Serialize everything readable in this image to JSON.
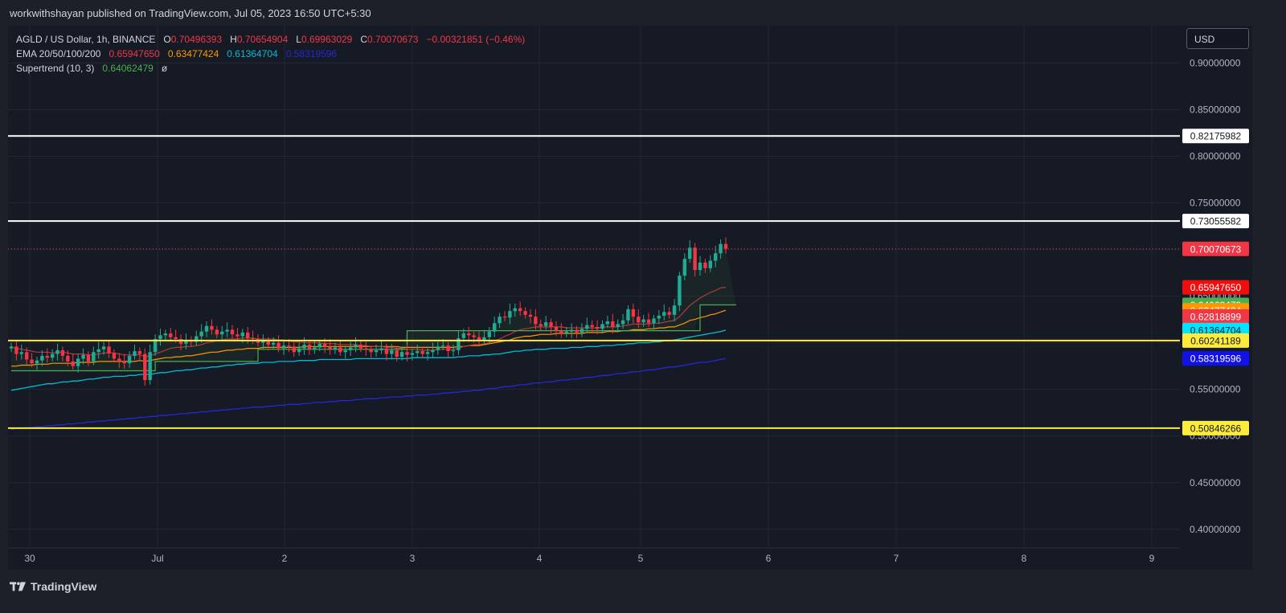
{
  "header": {
    "published": "workwithshayan published on TradingView.com, Jul 05, 2023 16:50 UTC+5:30"
  },
  "legend": {
    "symbol": "AGLD / US Dollar, 1h, BINANCE",
    "o_label": "O",
    "o_value": "0.70496393",
    "h_label": "H",
    "h_value": "0.70654904",
    "l_label": "L",
    "l_value": "0.69963029",
    "c_label": "C",
    "c_value": "0.70070673",
    "change": "−0.00321851 (−0.46%)",
    "ema_label": "EMA 20/50/100/200",
    "ema20": "0.65947650",
    "ema50": "0.63477424",
    "ema100": "0.61364704",
    "ema200": "0.58319596",
    "st_label": "Supertrend (10, 3)",
    "st_value": "0.64062479",
    "st_extra": "ø"
  },
  "currency_button": "USD",
  "footer": {
    "brand": "TradingView"
  },
  "colors": {
    "up": "#22ab94",
    "down": "#f23645",
    "ema20": "#f23645",
    "ema50": "#ff9800",
    "ema100": "#00bcd4",
    "ema200": "#2428d6",
    "supertrend_up": "#4caf50",
    "supertrend_down": "#f23645",
    "white_line": "#ffffff",
    "yellow_line": "#ffeb3b"
  },
  "chart_data": {
    "type": "candlestick",
    "symbol": "AGLD / US Dollar",
    "interval": "1h",
    "ylim": [
      0.38,
      0.94
    ],
    "y_ticks": [
      "0.40000000",
      "0.45000000",
      "0.50000000",
      "0.55000000",
      "0.60000000",
      "0.65000000",
      "0.70000000",
      "0.75000000",
      "0.80000000",
      "0.85000000",
      "0.90000000"
    ],
    "x_ticks": [
      "30",
      "Jul",
      "2",
      "3",
      "4",
      "5",
      "6",
      "7",
      "8",
      "9"
    ],
    "horizontal_lines": [
      {
        "value": 0.82175982,
        "label": "0.82175982",
        "color": "#ffffff"
      },
      {
        "value": 0.73055582,
        "label": "0.73055582",
        "color": "#ffffff"
      },
      {
        "value": 0.60241189,
        "label": "0.60241189",
        "color": "#ffeb3b"
      },
      {
        "value": 0.50846266,
        "label": "0.50846266",
        "color": "#ffeb3b"
      }
    ],
    "price_labels": [
      {
        "value": 0.70070673,
        "label": "0.70070673",
        "bg": "#f23645",
        "fg": "#ffffff"
      },
      {
        "value": 0.6594765,
        "label": "0.65947650",
        "bg": "#f20d0d",
        "fg": "#ffffff"
      },
      {
        "value": 0.64062479,
        "label": "0.64062479",
        "bg": "#4caf50",
        "fg": "#ffffff"
      },
      {
        "value": 0.63477424,
        "label": "0.63477424",
        "bg": "#ff9800",
        "fg": "#ffffff"
      },
      {
        "value": 0.62818899,
        "label": "0.62818899",
        "bg": "#f23645",
        "fg": "#ffffff"
      },
      {
        "value": 0.61364704,
        "label": "0.61364704",
        "bg": "#00e5ff",
        "fg": "#131722"
      },
      {
        "value": 0.60241189,
        "label": "0.60241189",
        "bg": "#ffeb3b",
        "fg": "#131722"
      },
      {
        "value": 0.58319596,
        "label": "0.58319596",
        "bg": "#1212e6",
        "fg": "#ffffff"
      },
      {
        "value": 0.50846266,
        "label": "0.50846266",
        "bg": "#ffeb3b",
        "fg": "#131722"
      }
    ],
    "last_close": 0.70070673,
    "candles_closes": [
      0.596,
      0.588,
      0.59,
      0.582,
      0.578,
      0.581,
      0.586,
      0.584,
      0.588,
      0.592,
      0.586,
      0.58,
      0.575,
      0.583,
      0.587,
      0.58,
      0.59,
      0.593,
      0.596,
      0.589,
      0.583,
      0.58,
      0.578,
      0.586,
      0.591,
      0.588,
      0.56,
      0.59,
      0.604,
      0.608,
      0.61,
      0.606,
      0.604,
      0.599,
      0.603,
      0.601,
      0.607,
      0.612,
      0.618,
      0.614,
      0.609,
      0.612,
      0.614,
      0.609,
      0.607,
      0.611,
      0.605,
      0.604,
      0.6,
      0.602,
      0.598,
      0.6,
      0.594,
      0.597,
      0.596,
      0.59,
      0.594,
      0.598,
      0.593,
      0.595,
      0.599,
      0.596,
      0.593,
      0.595,
      0.59,
      0.592,
      0.595,
      0.598,
      0.594,
      0.593,
      0.59,
      0.592,
      0.594,
      0.588,
      0.592,
      0.585,
      0.59,
      0.587,
      0.589,
      0.591,
      0.588,
      0.59,
      0.592,
      0.596,
      0.597,
      0.591,
      0.592,
      0.605,
      0.61,
      0.608,
      0.606,
      0.603,
      0.606,
      0.612,
      0.621,
      0.628,
      0.627,
      0.634,
      0.637,
      0.634,
      0.63,
      0.628,
      0.62,
      0.618,
      0.622,
      0.617,
      0.613,
      0.61,
      0.612,
      0.614,
      0.611,
      0.615,
      0.619,
      0.617,
      0.615,
      0.62,
      0.623,
      0.617,
      0.62,
      0.624,
      0.636,
      0.628,
      0.622,
      0.625,
      0.621,
      0.626,
      0.629,
      0.633,
      0.63,
      0.64,
      0.672,
      0.69,
      0.702,
      0.678,
      0.686,
      0.68,
      0.688,
      0.696,
      0.706,
      0.7007
    ],
    "ema20": [
      0.595,
      0.594,
      0.593,
      0.592,
      0.591,
      0.59,
      0.59,
      0.59,
      0.589,
      0.59,
      0.59,
      0.589,
      0.588,
      0.588,
      0.588,
      0.587,
      0.587,
      0.588,
      0.589,
      0.589,
      0.589,
      0.588,
      0.587,
      0.587,
      0.587,
      0.587,
      0.585,
      0.586,
      0.588,
      0.59,
      0.592,
      0.594,
      0.595,
      0.595,
      0.596,
      0.596,
      0.597,
      0.598,
      0.6,
      0.601,
      0.602,
      0.603,
      0.604,
      0.604,
      0.604,
      0.605,
      0.605,
      0.605,
      0.604,
      0.604,
      0.604,
      0.604,
      0.603,
      0.603,
      0.602,
      0.601,
      0.601,
      0.6,
      0.6,
      0.6,
      0.6,
      0.599,
      0.599,
      0.599,
      0.598,
      0.598,
      0.598,
      0.598,
      0.597,
      0.597,
      0.596,
      0.596,
      0.596,
      0.595,
      0.595,
      0.594,
      0.594,
      0.593,
      0.593,
      0.593,
      0.592,
      0.592,
      0.592,
      0.593,
      0.593,
      0.593,
      0.593,
      0.594,
      0.596,
      0.597,
      0.598,
      0.598,
      0.599,
      0.6,
      0.602,
      0.604,
      0.607,
      0.609,
      0.612,
      0.614,
      0.615,
      0.616,
      0.617,
      0.617,
      0.617,
      0.617,
      0.617,
      0.617,
      0.616,
      0.616,
      0.616,
      0.616,
      0.616,
      0.616,
      0.616,
      0.617,
      0.617,
      0.617,
      0.617,
      0.618,
      0.619,
      0.62,
      0.62,
      0.62,
      0.62,
      0.621,
      0.621,
      0.622,
      0.623,
      0.624,
      0.628,
      0.634,
      0.64,
      0.644,
      0.648,
      0.651,
      0.654,
      0.656,
      0.659,
      0.6595
    ],
    "ema50": [
      0.575,
      0.575,
      0.576,
      0.576,
      0.576,
      0.577,
      0.577,
      0.577,
      0.578,
      0.578,
      0.578,
      0.578,
      0.578,
      0.579,
      0.579,
      0.579,
      0.579,
      0.58,
      0.58,
      0.58,
      0.58,
      0.58,
      0.58,
      0.58,
      0.58,
      0.581,
      0.58,
      0.581,
      0.582,
      0.583,
      0.584,
      0.584,
      0.585,
      0.585,
      0.586,
      0.586,
      0.587,
      0.588,
      0.589,
      0.59,
      0.59,
      0.591,
      0.592,
      0.592,
      0.593,
      0.593,
      0.594,
      0.594,
      0.594,
      0.595,
      0.595,
      0.595,
      0.595,
      0.595,
      0.595,
      0.595,
      0.595,
      0.596,
      0.596,
      0.596,
      0.596,
      0.596,
      0.596,
      0.596,
      0.596,
      0.596,
      0.596,
      0.596,
      0.596,
      0.596,
      0.596,
      0.596,
      0.596,
      0.596,
      0.596,
      0.596,
      0.595,
      0.595,
      0.595,
      0.595,
      0.595,
      0.595,
      0.595,
      0.595,
      0.595,
      0.595,
      0.595,
      0.596,
      0.596,
      0.597,
      0.597,
      0.597,
      0.598,
      0.599,
      0.6,
      0.601,
      0.602,
      0.603,
      0.605,
      0.606,
      0.607,
      0.607,
      0.608,
      0.609,
      0.609,
      0.609,
      0.61,
      0.61,
      0.61,
      0.61,
      0.61,
      0.61,
      0.611,
      0.611,
      0.611,
      0.611,
      0.612,
      0.612,
      0.612,
      0.613,
      0.613,
      0.614,
      0.614,
      0.614,
      0.615,
      0.615,
      0.616,
      0.616,
      0.617,
      0.617,
      0.619,
      0.621,
      0.624,
      0.625,
      0.627,
      0.628,
      0.63,
      0.631,
      0.633,
      0.6348
    ],
    "ema100": [
      0.549,
      0.55,
      0.551,
      0.552,
      0.553,
      0.554,
      0.555,
      0.556,
      0.556,
      0.557,
      0.558,
      0.558,
      0.559,
      0.559,
      0.56,
      0.561,
      0.561,
      0.562,
      0.563,
      0.563,
      0.564,
      0.564,
      0.564,
      0.565,
      0.565,
      0.566,
      0.566,
      0.566,
      0.567,
      0.568,
      0.568,
      0.569,
      0.57,
      0.57,
      0.571,
      0.571,
      0.572,
      0.573,
      0.573,
      0.574,
      0.574,
      0.575,
      0.576,
      0.576,
      0.577,
      0.577,
      0.578,
      0.578,
      0.578,
      0.579,
      0.579,
      0.579,
      0.58,
      0.58,
      0.58,
      0.58,
      0.581,
      0.581,
      0.581,
      0.581,
      0.582,
      0.582,
      0.582,
      0.582,
      0.582,
      0.582,
      0.582,
      0.583,
      0.583,
      0.583,
      0.583,
      0.583,
      0.583,
      0.583,
      0.583,
      0.583,
      0.583,
      0.583,
      0.584,
      0.584,
      0.584,
      0.584,
      0.584,
      0.584,
      0.584,
      0.584,
      0.584,
      0.585,
      0.585,
      0.586,
      0.586,
      0.586,
      0.587,
      0.587,
      0.588,
      0.588,
      0.589,
      0.59,
      0.591,
      0.591,
      0.592,
      0.592,
      0.593,
      0.593,
      0.593,
      0.594,
      0.594,
      0.594,
      0.594,
      0.595,
      0.595,
      0.595,
      0.596,
      0.596,
      0.596,
      0.597,
      0.597,
      0.597,
      0.598,
      0.598,
      0.599,
      0.599,
      0.6,
      0.6,
      0.6,
      0.601,
      0.601,
      0.602,
      0.602,
      0.603,
      0.604,
      0.605,
      0.606,
      0.607,
      0.608,
      0.609,
      0.61,
      0.611,
      0.612,
      0.6136
    ],
    "ema200": [
      0.507,
      0.508,
      0.508,
      0.509,
      0.509,
      0.51,
      0.51,
      0.511,
      0.511,
      0.512,
      0.512,
      0.513,
      0.513,
      0.514,
      0.514,
      0.515,
      0.515,
      0.516,
      0.516,
      0.517,
      0.517,
      0.518,
      0.518,
      0.519,
      0.519,
      0.52,
      0.52,
      0.521,
      0.521,
      0.522,
      0.522,
      0.523,
      0.523,
      0.524,
      0.524,
      0.525,
      0.525,
      0.526,
      0.526,
      0.527,
      0.527,
      0.528,
      0.528,
      0.529,
      0.529,
      0.53,
      0.53,
      0.531,
      0.531,
      0.531,
      0.532,
      0.532,
      0.533,
      0.533,
      0.534,
      0.534,
      0.534,
      0.535,
      0.535,
      0.536,
      0.536,
      0.536,
      0.537,
      0.537,
      0.538,
      0.538,
      0.538,
      0.539,
      0.539,
      0.54,
      0.54,
      0.54,
      0.541,
      0.541,
      0.542,
      0.542,
      0.542,
      0.543,
      0.543,
      0.544,
      0.544,
      0.544,
      0.545,
      0.545,
      0.546,
      0.546,
      0.547,
      0.547,
      0.548,
      0.548,
      0.549,
      0.549,
      0.55,
      0.551,
      0.551,
      0.552,
      0.553,
      0.553,
      0.554,
      0.555,
      0.555,
      0.556,
      0.557,
      0.557,
      0.558,
      0.558,
      0.559,
      0.56,
      0.56,
      0.561,
      0.561,
      0.562,
      0.563,
      0.563,
      0.564,
      0.565,
      0.565,
      0.566,
      0.567,
      0.567,
      0.568,
      0.569,
      0.569,
      0.57,
      0.571,
      0.571,
      0.572,
      0.573,
      0.574,
      0.574,
      0.575,
      0.576,
      0.577,
      0.578,
      0.579,
      0.579,
      0.58,
      0.581,
      0.582,
      0.5832
    ],
    "supertrend": [
      0.57,
      0.57,
      0.57,
      0.57,
      0.57,
      0.57,
      0.57,
      0.57,
      0.57,
      0.57,
      0.57,
      0.57,
      0.57,
      0.57,
      0.57,
      0.57,
      0.57,
      0.57,
      0.57,
      0.57,
      0.57,
      0.57,
      0.57,
      0.57,
      0.57,
      0.57,
      0.57,
      0.57,
      0.58,
      0.58,
      0.58,
      0.58,
      0.58,
      0.58,
      0.58,
      0.58,
      0.58,
      0.58,
      0.58,
      0.58,
      0.58,
      0.58,
      0.58,
      0.58,
      0.58,
      0.58,
      0.58,
      0.58,
      0.593,
      0.593,
      0.593,
      0.593,
      0.593,
      0.593,
      0.593,
      0.593,
      0.593,
      0.593,
      0.593,
      0.593,
      0.593,
      0.593,
      0.593,
      0.593,
      0.593,
      0.593,
      0.593,
      0.593,
      0.593,
      0.593,
      0.593,
      0.593,
      0.593,
      0.593,
      0.593,
      0.593,
      0.593,
      0.613,
      0.613,
      0.613,
      0.613,
      0.613,
      0.613,
      0.613,
      0.613,
      0.613,
      0.613,
      0.613,
      0.613,
      0.613,
      0.613,
      0.613,
      0.613,
      0.613,
      0.613,
      0.613,
      0.613,
      0.613,
      0.613,
      0.613,
      0.613,
      0.613,
      0.613,
      0.613,
      0.613,
      0.613,
      0.613,
      0.613,
      0.613,
      0.613,
      0.613,
      0.613,
      0.613,
      0.613,
      0.613,
      0.613,
      0.613,
      0.613,
      0.613,
      0.613,
      0.613,
      0.613,
      0.613,
      0.613,
      0.613,
      0.613,
      0.613,
      0.613,
      0.613,
      0.613,
      0.613,
      0.613,
      0.613,
      0.613,
      0.6406,
      0.6406,
      0.6406,
      0.6406,
      0.6406,
      0.6406,
      0.6406,
      0.6406
    ]
  }
}
